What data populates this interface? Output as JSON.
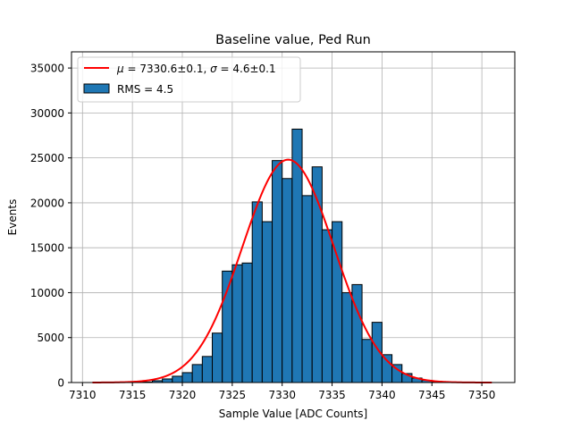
{
  "chart_data": {
    "type": "bar",
    "title": "Baseline value, Ped Run",
    "xlabel": "Sample Value [ADC Counts]",
    "ylabel": "Events",
    "xlim": [
      7308.9,
      7353.3
    ],
    "ylim": [
      0,
      36800
    ],
    "grid": true,
    "xticks": [
      7310,
      7315,
      7320,
      7325,
      7330,
      7335,
      7340,
      7345,
      7350
    ],
    "yticks": [
      0,
      5000,
      10000,
      15000,
      20000,
      25000,
      30000,
      35000
    ],
    "histogram": {
      "name": "RMS = 4.5",
      "color": "#1f77b4",
      "bin_width": 1.0,
      "bin_starts": [
        7311,
        7312,
        7313,
        7314,
        7315,
        7316,
        7317,
        7318,
        7319,
        7320,
        7321,
        7322,
        7323,
        7324,
        7325,
        7326,
        7327,
        7328,
        7329,
        7330,
        7331,
        7332,
        7333,
        7334,
        7335,
        7336,
        7337,
        7338,
        7339,
        7340,
        7341,
        7342,
        7343,
        7344,
        7345,
        7346,
        7347,
        7348,
        7349,
        7350
      ],
      "values": [
        0,
        0,
        0,
        0,
        0,
        60,
        200,
        400,
        700,
        1100,
        2000,
        2900,
        5500,
        12400,
        13100,
        13300,
        20100,
        17900,
        24700,
        22700,
        28200,
        20800,
        24000,
        17000,
        17900,
        10000,
        10900,
        4800,
        6700,
        3100,
        2000,
        1000,
        500,
        250,
        100,
        40,
        0,
        0,
        0,
        0
      ]
    },
    "fit": {
      "name": "$\\mu = 7330.6$±0.1, $\\sigma = 4.6$±0.1",
      "mu_symbol": "μ",
      "mu_text": " = 7330.6±0.1, ",
      "sigma_symbol": "σ",
      "sigma_text": " = 4.6±0.1",
      "color": "#ff0000",
      "mu": 7330.6,
      "sigma": 4.6,
      "amplitude": 24800,
      "x_range": [
        7311,
        7351
      ]
    },
    "legend_position": "top-left"
  }
}
